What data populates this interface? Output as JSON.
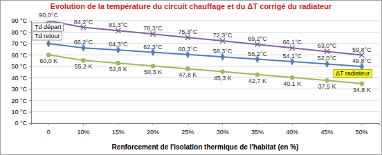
{
  "chart_data": {
    "type": "line",
    "title": "Evolution de la température du circuit chauffage et du ΔT corrigé du radiateur",
    "x_label": "Renforcement de l'isolation thermique de l'habitat (en %)",
    "categories": [
      "0",
      "10%",
      "15%",
      "20%",
      "25%",
      "30%",
      "35%",
      "40%",
      "45%",
      "50%"
    ],
    "series": [
      {
        "name": "Td départ",
        "color": "#8064a2",
        "marker": "x",
        "values": [
          90.0,
          84.2,
          81.3,
          78.3,
          75.3,
          72.3,
          69.2,
          66.1,
          63.0,
          59.8
        ],
        "value_labels": [
          "90,0°C",
          "84,2°C",
          "81,3°C",
          "78,3°C",
          "75,3°C",
          "72,3°C",
          "69,2°C",
          "66,1°C",
          "63,0°C",
          "59,8°C"
        ]
      },
      {
        "name": "Td retour",
        "color": "#4f81bd",
        "marker": "diamond",
        "values": [
          70.0,
          66.2,
          64.3,
          62.3,
          60.3,
          58.3,
          56.2,
          54.1,
          52.0,
          49.8
        ],
        "value_labels": [
          null,
          "66,2°C",
          "64,3°C",
          "62,3°C",
          "60,3°C",
          "58,3°C",
          "56,2°C",
          "54,1°C",
          "52,0°C",
          "49,8°C"
        ]
      },
      {
        "name": "ΔT radiateur",
        "color": "#9bbb59",
        "marker": "circle",
        "values": [
          60.0,
          55.2,
          52.8,
          50.3,
          47.8,
          45.3,
          42.7,
          40.1,
          37.5,
          34.8
        ],
        "value_labels": [
          "60,0 K",
          "55,2 K",
          "52,8 K",
          "50,3 K",
          "47,8 K",
          "45,3 K",
          "42,7 K",
          "40,1 K",
          "37,5 K",
          "34,8 K"
        ]
      }
    ],
    "ylim": [
      0,
      90
    ],
    "yticks": [
      {
        "value": 0,
        "label": "0 °C"
      },
      {
        "value": 10,
        "label": "10 °C"
      },
      {
        "value": 20,
        "label": "20 °C"
      },
      {
        "value": 30,
        "label": "30 °C"
      },
      {
        "value": 40,
        "label": "40 °C"
      },
      {
        "value": 50,
        "label": "50 °C"
      },
      {
        "value": 60,
        "label": "60 °C"
      },
      {
        "value": 70,
        "label": "70 °C"
      },
      {
        "value": 80,
        "label": "80 °C"
      },
      {
        "value": 90,
        "label": "90 °C"
      }
    ],
    "grid": true,
    "data_labels": true
  }
}
